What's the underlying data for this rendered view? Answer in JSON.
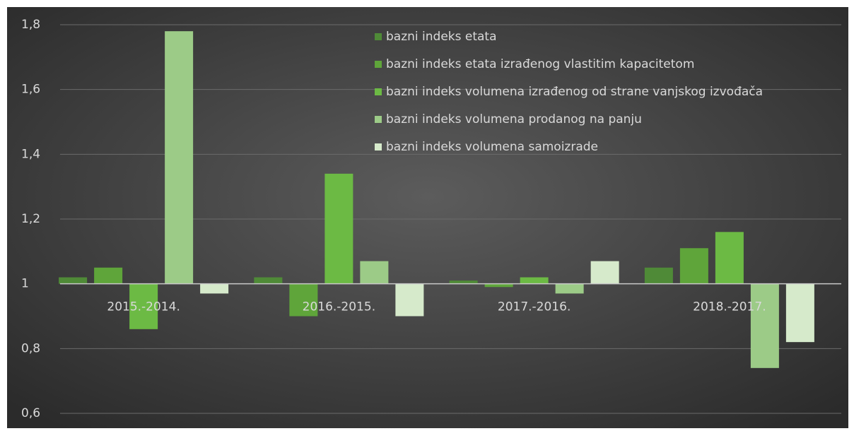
{
  "chart_data": {
    "type": "bar",
    "categories": [
      "2015.-2014.",
      "2016.-2015.",
      "2017.-2016.",
      "2018.-2017."
    ],
    "series": [
      {
        "name": "bazni indeks etata",
        "color": "#4f8a37",
        "values": [
          1.02,
          1.02,
          1.01,
          1.05
        ]
      },
      {
        "name": "bazni indeks etata izrađenog vlastitim kapacitetom",
        "color": "#5fa53a",
        "values": [
          1.05,
          0.9,
          0.99,
          1.11
        ]
      },
      {
        "name": "bazni indeks volumena izrađenog od strane vanjskog izvođača",
        "color": "#6cba44",
        "values": [
          0.86,
          1.34,
          1.02,
          1.16
        ]
      },
      {
        "name": "bazni indeks volumena prodanog na panju",
        "color": "#9ccb87",
        "values": [
          1.78,
          1.07,
          0.97,
          0.74
        ]
      },
      {
        "name": "bazni indeks volumena samoizrade",
        "color": "#d6eacb",
        "values": [
          0.97,
          0.9,
          1.07,
          0.82
        ]
      }
    ],
    "bar_base": 1,
    "ylim": [
      0.6,
      1.8
    ],
    "yticks": [
      {
        "value": 0.6,
        "label": "0,6"
      },
      {
        "value": 0.8,
        "label": "0,8"
      },
      1,
      {
        "value": 1.2,
        "label": "1,2"
      },
      {
        "value": 1.4,
        "label": "1,4"
      },
      {
        "value": 1.6,
        "label": "1,6"
      },
      {
        "value": 1.8,
        "label": "1,8"
      }
    ],
    "grid": true,
    "legend": "top"
  }
}
